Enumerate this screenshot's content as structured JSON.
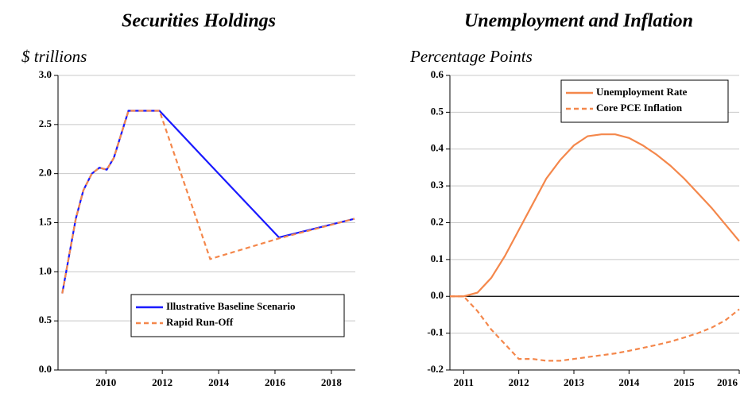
{
  "chart_data": [
    {
      "type": "line",
      "title": "Securities Holdings",
      "subtitle": "$ trillions",
      "x": [
        2008.45,
        2008.93,
        2009.2,
        2009.5,
        2009.77,
        2010.03,
        2010.28,
        2010.8,
        2011.9,
        2013.7,
        2016.14,
        2018.82
      ],
      "series": [
        {
          "name": "Illustrative Baseline Scenario",
          "color": "#1a1aff",
          "style": "solid",
          "values": [
            0.78,
            1.54,
            1.83,
            2.0,
            2.06,
            2.04,
            2.16,
            2.64,
            2.64,
            2.09,
            1.35,
            1.54
          ]
        },
        {
          "name": "Rapid Run-Off",
          "color": "#f4874b",
          "style": "dashed",
          "values": [
            0.78,
            1.54,
            1.83,
            2.0,
            2.06,
            2.04,
            2.16,
            2.64,
            2.64,
            1.13,
            1.34,
            1.54
          ]
        }
      ],
      "xlim": [
        2008.3,
        2018.85
      ],
      "xticks": [
        2010,
        2012,
        2014,
        2016,
        2018
      ],
      "ylim": [
        0,
        3
      ],
      "yticks": [
        {
          "value": 0,
          "label": "0.0"
        },
        0.5,
        {
          "value": 1,
          "label": "1.0"
        },
        1.5,
        {
          "value": 2,
          "label": "2.0"
        },
        2.5,
        {
          "value": 3,
          "label": "3.0"
        }
      ],
      "grid": true,
      "legend": "lower right",
      "zero_line": false
    },
    {
      "type": "line",
      "title": "Unemployment and Inflation",
      "subtitle": "Percentage Points",
      "x": [
        2010.75,
        2011,
        2011.25,
        2011.5,
        2011.75,
        2012,
        2012.25,
        2012.5,
        2012.75,
        2013,
        2013.25,
        2013.5,
        2013.75,
        2014,
        2014.25,
        2014.5,
        2014.75,
        2015,
        2015.25,
        2015.5,
        2015.75,
        2016
      ],
      "series": [
        {
          "name": "Unemployment Rate",
          "color": "#f4874b",
          "style": "solid",
          "values": [
            0,
            0,
            0.01,
            0.05,
            0.11,
            0.18,
            0.25,
            0.32,
            0.37,
            0.41,
            0.435,
            0.44,
            0.44,
            0.43,
            0.41,
            0.385,
            0.355,
            0.32,
            0.28,
            0.24,
            0.195,
            0.15
          ]
        },
        {
          "name": "Core PCE Inflation",
          "color": "#f4874b",
          "style": "dashed",
          "values": [
            0,
            0,
            -0.04,
            -0.09,
            -0.13,
            -0.17,
            -0.17,
            -0.175,
            -0.175,
            -0.17,
            -0.165,
            -0.16,
            -0.155,
            -0.148,
            -0.14,
            -0.132,
            -0.123,
            -0.112,
            -0.1,
            -0.085,
            -0.065,
            -0.035
          ]
        }
      ],
      "xlim": [
        2010.75,
        2016
      ],
      "xticks": [
        2011,
        2012,
        2013,
        2014,
        2015,
        2016
      ],
      "ylim": [
        -0.2,
        0.6
      ],
      "yticks": [
        -0.2,
        -0.1,
        {
          "value": 0,
          "label": "0.0"
        },
        0.1,
        0.2,
        0.3,
        0.4,
        0.5,
        0.6
      ],
      "grid": true,
      "legend": "upper right",
      "zero_line": true
    }
  ]
}
